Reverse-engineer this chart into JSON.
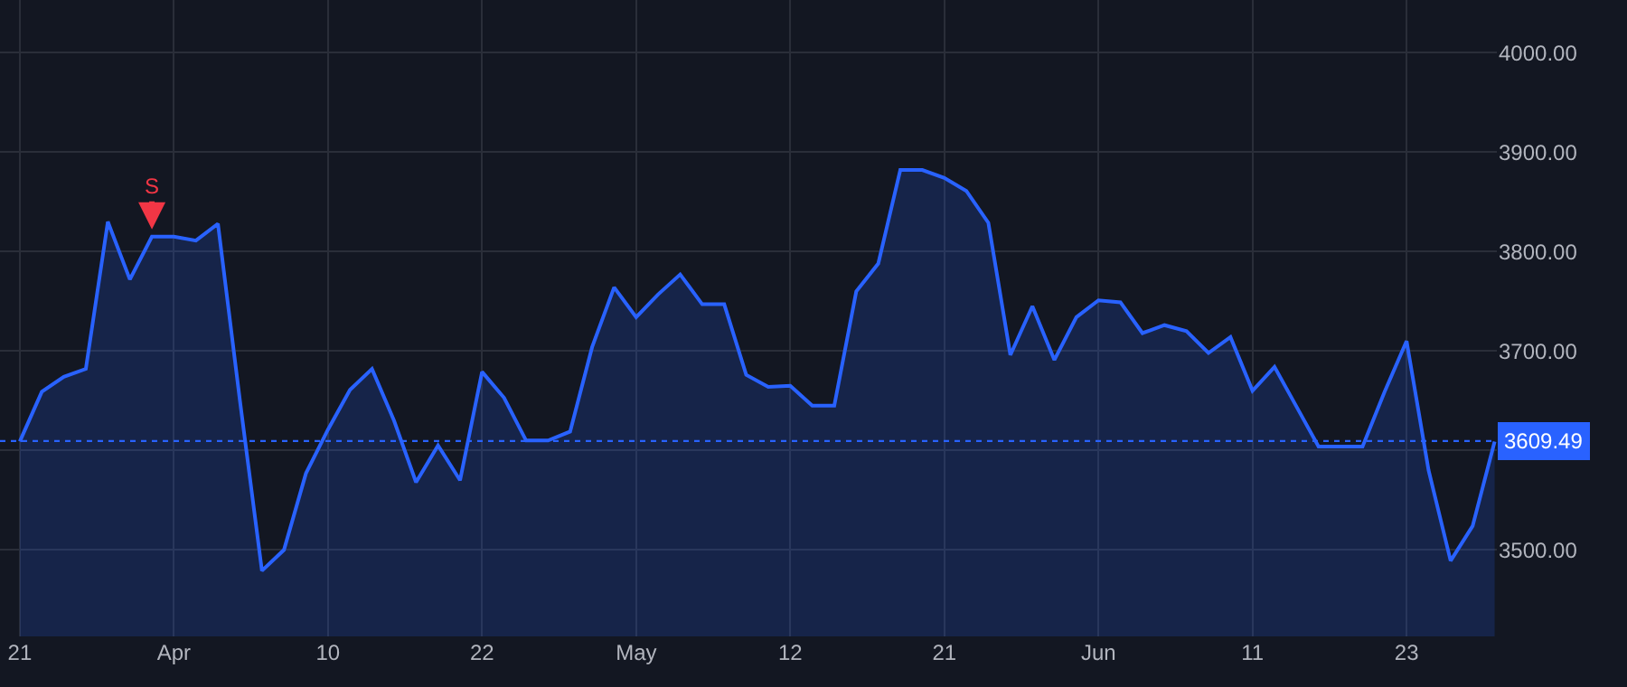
{
  "chart_data": {
    "type": "area",
    "categories": [
      "21",
      null,
      null,
      null,
      null,
      null,
      null,
      "Apr",
      null,
      null,
      null,
      null,
      null,
      null,
      "10",
      null,
      null,
      null,
      null,
      null,
      null,
      "22",
      null,
      null,
      null,
      null,
      null,
      null,
      "May",
      null,
      null,
      null,
      null,
      null,
      null,
      "12",
      null,
      null,
      null,
      null,
      null,
      null,
      "21",
      null,
      null,
      null,
      null,
      null,
      null,
      "Jun",
      null,
      null,
      null,
      null,
      null,
      null,
      "11",
      null,
      null,
      null,
      null,
      null,
      null,
      "23",
      null,
      null,
      null,
      null
    ],
    "series": [
      {
        "color": "#2962ff",
        "values": [
          3609,
          3659,
          3674,
          3682,
          3830,
          3772,
          3815,
          3815,
          3811,
          3828,
          3650,
          3479,
          3500,
          3577,
          3621,
          3661,
          3682,
          3630,
          3568,
          3605,
          3570,
          3679,
          3653,
          3610,
          3610,
          3619,
          3704,
          3764,
          3734,
          3757,
          3777,
          3747,
          3747,
          3676,
          3664,
          3665,
          3645,
          3645,
          3760,
          3788,
          3882,
          3882,
          3874,
          3861,
          3829,
          3696,
          3745,
          3691,
          3734,
          3751,
          3749,
          3718,
          3726,
          3720,
          3698,
          3714,
          3660,
          3684,
          3644,
          3604,
          3604,
          3604,
          3659,
          3710,
          3580,
          3489,
          3524,
          3609
        ]
      }
    ],
    "ylim": [
      3413,
      4053
    ],
    "yticks": [
      {
        "value": 3500,
        "label": "3500.00"
      },
      {
        "value": 3600,
        "label": null
      },
      {
        "value": 3700,
        "label": "3700.00"
      },
      {
        "value": 3800,
        "label": "3800.00"
      },
      {
        "value": 3900,
        "label": "3900.00"
      },
      {
        "value": 4000,
        "label": "4000.00"
      }
    ],
    "ref_lines": [
      {
        "axis": "y",
        "value": 3609.49,
        "label": "3609.49",
        "color": "#2962ff",
        "line_style": "dotted"
      }
    ],
    "annotations": [
      {
        "text": "S",
        "y": 3815
      }
    ],
    "grid": true,
    "marker": "none",
    "line_style": "solid"
  }
}
